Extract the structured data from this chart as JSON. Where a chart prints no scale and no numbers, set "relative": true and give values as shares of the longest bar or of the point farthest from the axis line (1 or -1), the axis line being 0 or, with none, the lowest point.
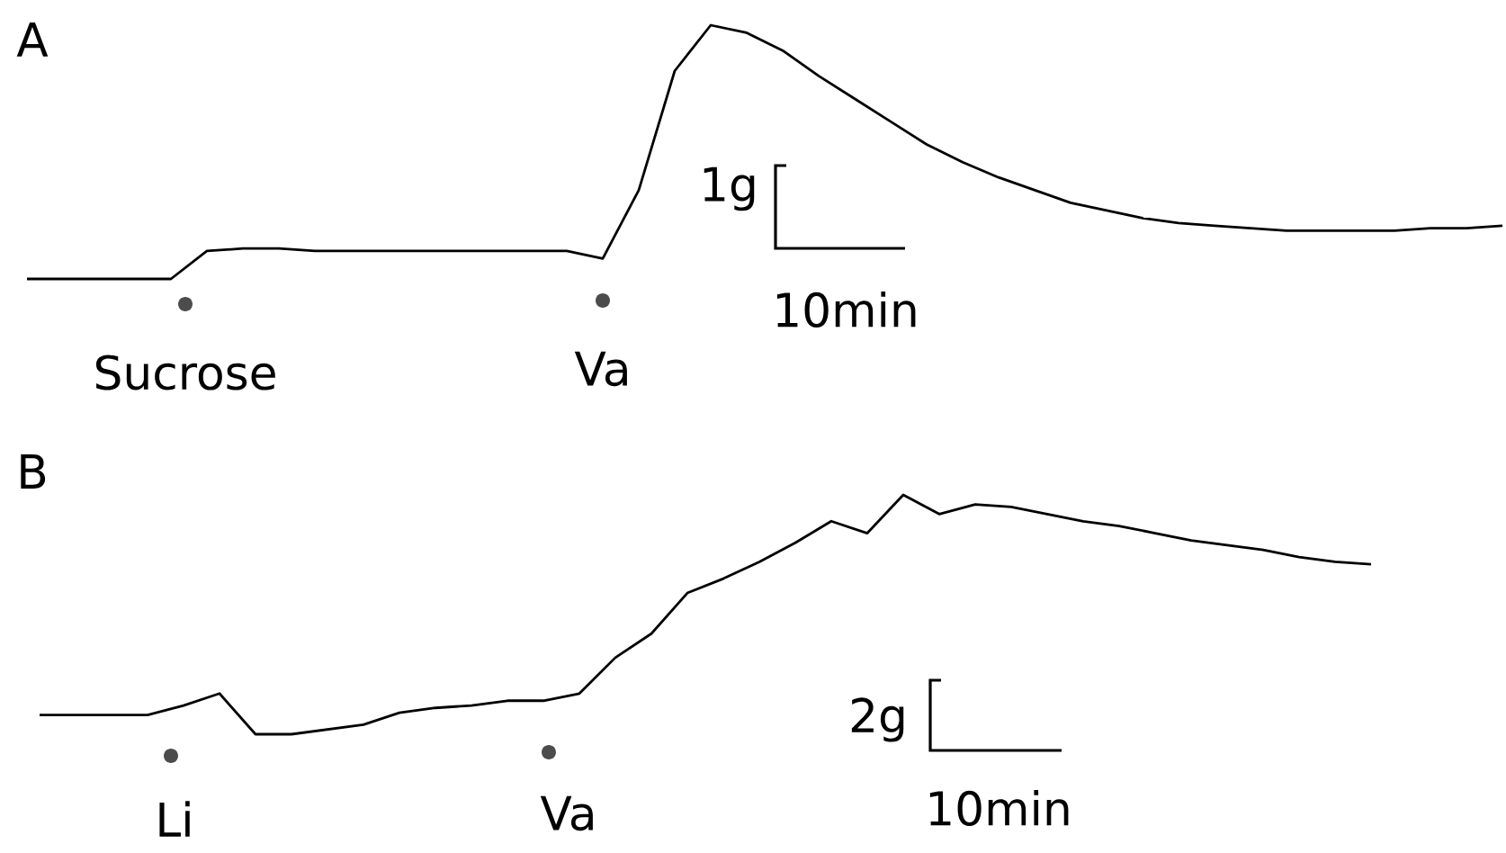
{
  "chart_data": [
    {
      "type": "line",
      "title": "A",
      "relative": true,
      "color": "#000000",
      "categories": [
        null,
        null,
        null,
        null,
        null,
        null,
        null,
        null,
        null,
        null,
        null,
        null,
        null,
        null,
        null,
        null,
        null,
        null,
        null,
        null,
        null,
        null,
        null,
        null,
        null,
        null,
        null,
        null,
        null,
        null,
        null,
        null,
        null,
        null,
        null,
        null,
        null,
        null,
        null,
        null,
        null,
        null
      ],
      "values": [
        0,
        0,
        0,
        0,
        0,
        0.11,
        0.12,
        0.12,
        0.11,
        0.11,
        0.11,
        0.11,
        0.11,
        0.11,
        0.11,
        0.11,
        0.08,
        0.35,
        0.82,
        1,
        0.97,
        0.9,
        0.8,
        0.71,
        0.62,
        0.53,
        0.46,
        0.4,
        0.35,
        0.3,
        0.27,
        0.24,
        0.22,
        0.21,
        0.2,
        0.19,
        0.19,
        0.19,
        0.19,
        0.2,
        0.2,
        0.21
      ],
      "annotations": [
        "Sucrose",
        "Va",
        "1g",
        "10min"
      ]
    },
    {
      "type": "line",
      "title": "B",
      "relative": true,
      "color": "#000000",
      "categories": [
        null,
        null,
        null,
        null,
        null,
        null,
        null,
        null,
        null,
        null,
        null,
        null,
        null,
        null,
        null,
        null,
        null,
        null,
        null,
        null,
        null,
        null,
        null,
        null,
        null,
        null,
        null,
        null,
        null,
        null,
        null,
        null,
        null,
        null,
        null,
        null,
        null,
        null
      ],
      "values": [
        0.08,
        0.08,
        0.08,
        0.08,
        0.12,
        0.17,
        0,
        0,
        0.02,
        0.04,
        0.09,
        0.11,
        0.12,
        0.14,
        0.14,
        0.17,
        0.32,
        0.42,
        0.59,
        0.65,
        0.72,
        0.8,
        0.89,
        0.84,
        1,
        0.92,
        0.96,
        0.95,
        0.92,
        0.89,
        0.87,
        0.84,
        0.81,
        0.79,
        0.77,
        0.74,
        0.72,
        0.71
      ],
      "annotations": [
        "Li",
        "Va",
        "2g",
        "10min"
      ]
    }
  ]
}
